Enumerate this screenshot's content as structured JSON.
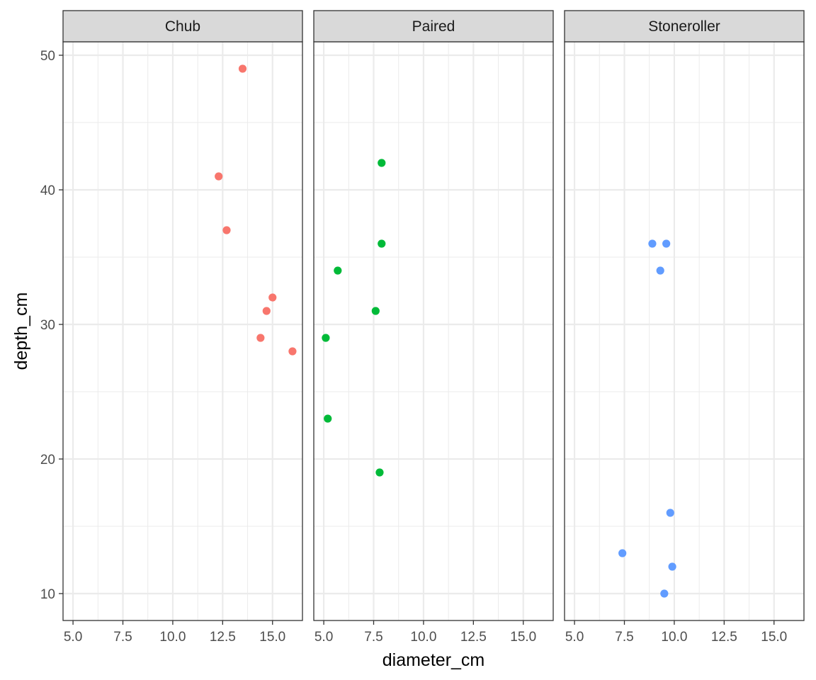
{
  "chart_data": {
    "type": "scatter",
    "facet_by": "species",
    "xlabel": "diameter_cm",
    "ylabel": "depth_cm",
    "xlim": [
      4.5,
      16.5
    ],
    "ylim": [
      8.0,
      51.0
    ],
    "x_ticks": [
      5.0,
      7.5,
      10.0,
      12.5,
      15.0
    ],
    "x_tick_labels": [
      "5.0",
      "7.5",
      "10.0",
      "12.5",
      "15.0"
    ],
    "y_ticks": [
      10,
      20,
      30,
      40,
      50
    ],
    "y_tick_labels": [
      "10",
      "20",
      "30",
      "40",
      "50"
    ],
    "grid": true,
    "theme": "bw",
    "strip_fill": "#d9d9d9",
    "panel_border": "#333333",
    "grid_color": "#ebebeb",
    "panels": [
      {
        "label": "Chub",
        "color": "#f8766d",
        "points": [
          {
            "x": 13.5,
            "y": 49
          },
          {
            "x": 12.3,
            "y": 41
          },
          {
            "x": 12.7,
            "y": 37
          },
          {
            "x": 15.0,
            "y": 32
          },
          {
            "x": 14.7,
            "y": 31
          },
          {
            "x": 14.4,
            "y": 29
          },
          {
            "x": 16.0,
            "y": 28
          }
        ]
      },
      {
        "label": "Paired",
        "color": "#00ba38",
        "points": [
          {
            "x": 7.9,
            "y": 42
          },
          {
            "x": 7.9,
            "y": 36
          },
          {
            "x": 5.7,
            "y": 34
          },
          {
            "x": 7.6,
            "y": 31
          },
          {
            "x": 5.1,
            "y": 29
          },
          {
            "x": 5.2,
            "y": 23
          },
          {
            "x": 7.8,
            "y": 19
          }
        ]
      },
      {
        "label": "Stoneroller",
        "color": "#619cff",
        "points": [
          {
            "x": 8.9,
            "y": 36
          },
          {
            "x": 9.6,
            "y": 36
          },
          {
            "x": 9.3,
            "y": 34
          },
          {
            "x": 9.8,
            "y": 16
          },
          {
            "x": 7.4,
            "y": 13
          },
          {
            "x": 9.9,
            "y": 12
          },
          {
            "x": 9.5,
            "y": 10
          }
        ]
      }
    ]
  }
}
